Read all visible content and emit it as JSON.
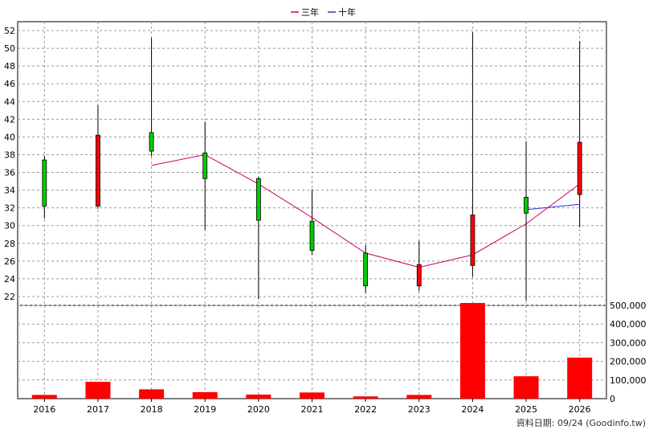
{
  "legend": {
    "position": "top-center",
    "items": [
      {
        "label": "三年",
        "color": "#cc0066"
      },
      {
        "label": "十年",
        "color": "#3333cc"
      }
    ]
  },
  "footer": {
    "text": "資料日期: 09/24  (Goodinfo.tw)"
  },
  "chart_data": [
    {
      "type": "candlestick",
      "title": "",
      "xlabel": "",
      "ylabel": "",
      "ylim": [
        21,
        53
      ],
      "yticks": [
        22,
        24,
        26,
        28,
        30,
        32,
        34,
        36,
        38,
        40,
        42,
        44,
        46,
        48,
        50,
        52
      ],
      "grid": true,
      "up_color": "#ff0000",
      "down_color": "#00cc00",
      "categories": [
        "2016",
        "2017",
        "2018",
        "2019",
        "2020",
        "2021",
        "2022",
        "2023",
        "2024",
        "2025",
        "2026"
      ],
      "ohlc": [
        {
          "open": 37.4,
          "high": 37.9,
          "low": 30.8,
          "close": 32.2
        },
        {
          "open": 32.2,
          "high": 43.6,
          "low": 31.9,
          "close": 40.2
        },
        {
          "open": 40.5,
          "high": 51.2,
          "low": 37.8,
          "close": 38.4
        },
        {
          "open": 38.2,
          "high": 41.7,
          "low": 29.5,
          "close": 35.3
        },
        {
          "open": 35.3,
          "high": 35.5,
          "low": 21.7,
          "close": 30.6
        },
        {
          "open": 30.5,
          "high": 34.1,
          "low": 26.7,
          "close": 27.2
        },
        {
          "open": 26.9,
          "high": 27.8,
          "low": 22.4,
          "close": 23.2
        },
        {
          "open": 23.2,
          "high": 28.3,
          "low": 22.6,
          "close": 25.6
        },
        {
          "open": 25.5,
          "high": 51.8,
          "low": 24.2,
          "close": 31.2
        },
        {
          "open": 33.2,
          "high": 39.5,
          "low": 21.5,
          "close": 31.4
        },
        {
          "open": 33.5,
          "high": 50.8,
          "low": 29.8,
          "close": 39.4
        }
      ],
      "series": [
        {
          "name": "三年",
          "color": "#cc0066",
          "values": [
            null,
            null,
            36.8,
            38.0,
            34.7,
            30.9,
            26.9,
            25.3,
            26.7,
            30.2,
            34.7
          ]
        },
        {
          "name": "十年",
          "color": "#3333cc",
          "values": [
            null,
            null,
            null,
            null,
            null,
            null,
            null,
            null,
            null,
            31.8,
            32.4
          ]
        }
      ]
    },
    {
      "type": "bar",
      "title": "",
      "xlabel": "",
      "ylabel": "",
      "ylim": [
        0,
        500000
      ],
      "yticks": [
        0,
        100000,
        200000,
        300000,
        400000,
        500000
      ],
      "ytick_labels": [
        "0",
        "100,000",
        "200,000",
        "300,000",
        "400,000",
        "500,000"
      ],
      "grid": true,
      "color": "#ff0000",
      "categories": [
        "2016",
        "2017",
        "2018",
        "2019",
        "2020",
        "2021",
        "2022",
        "2023",
        "2024",
        "2025",
        "2026"
      ],
      "values": [
        20000,
        90000,
        50000,
        35000,
        22000,
        33000,
        12000,
        20000,
        513000,
        120000,
        220000
      ]
    }
  ]
}
